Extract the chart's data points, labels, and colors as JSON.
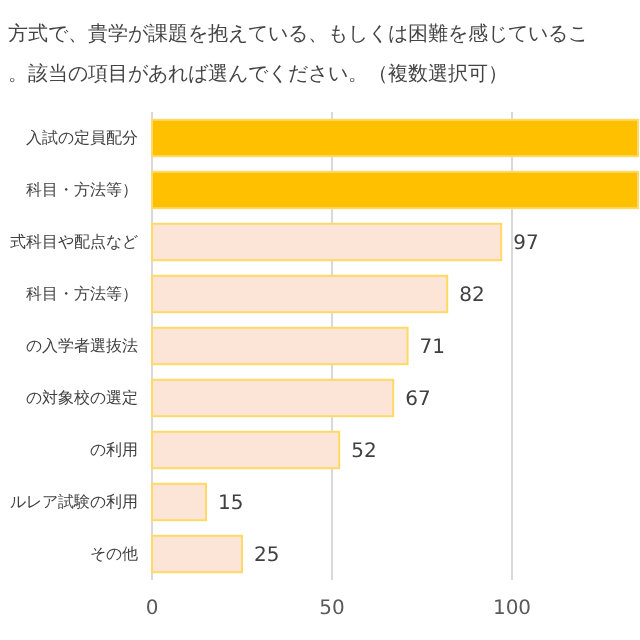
{
  "chart_data": {
    "type": "bar",
    "orientation": "horizontal",
    "title": "方式で、貴学が課題を抱えている、もしくは困難を感じているこ",
    "subtitle": "。該当の項目があれば選んでください。（複数選択可）",
    "categories": [
      "入試の定員配分",
      "科目・方法等）",
      "式科目や配点など",
      "科目・方法等）",
      "の入学者選抜法",
      "の対象校の選定",
      "の利用",
      "ルレア試験の利用",
      "その他"
    ],
    "values": [
      135,
      135,
      97,
      82,
      71,
      67,
      52,
      15,
      25
    ],
    "colors": [
      "#ffc000",
      "#ffc000",
      "#fce4d6",
      "#fce4d6",
      "#fce4d6",
      "#fce4d6",
      "#fce4d6",
      "#fce4d6",
      "#fce4d6"
    ],
    "value_labels": [
      null,
      null,
      "97",
      "82",
      "71",
      "67",
      "52",
      "15",
      "25"
    ],
    "xlim": [
      0,
      135
    ],
    "xticks": [
      0,
      50,
      100
    ],
    "grid": "x"
  }
}
